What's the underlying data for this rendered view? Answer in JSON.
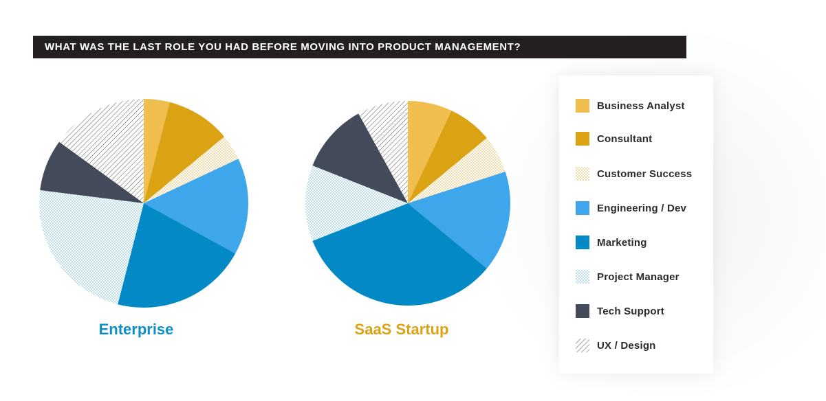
{
  "title": "WHAT WAS THE LAST ROLE YOU HAD BEFORE MOVING INTO PRODUCT MANAGEMENT?",
  "colors": {
    "business_analyst": "#f0bd4f",
    "consultant": "#dba214",
    "customer_success": "#e6b54a",
    "engineering_dev": "#3ea6ea",
    "marketing": "#038ac6",
    "project_manager": "#6fbcd6",
    "tech_support": "#434b5a",
    "ux_design": "#555555",
    "enterprise_label": "#0e8fc9",
    "startup_label": "#dba214"
  },
  "legend": [
    {
      "label": "Business Analyst",
      "key": "business_analyst",
      "icon": "solid-swatch"
    },
    {
      "label": "Consultant",
      "key": "consultant",
      "icon": "solid-swatch"
    },
    {
      "label": "Customer Success",
      "key": "customer_success",
      "icon": "dotted-swatch"
    },
    {
      "label": "Engineering / Dev",
      "key": "engineering_dev",
      "icon": "solid-swatch"
    },
    {
      "label": "Marketing",
      "key": "marketing",
      "icon": "solid-swatch"
    },
    {
      "label": "Project Manager",
      "key": "project_manager",
      "icon": "dotted-swatch"
    },
    {
      "label": "Tech Support",
      "key": "tech_support",
      "icon": "solid-swatch"
    },
    {
      "label": "UX / Design",
      "key": "ux_design",
      "icon": "hatched-swatch"
    }
  ],
  "chart_data": [
    {
      "type": "pie",
      "title": "Enterprise",
      "categories": [
        "Business Analyst",
        "Consultant",
        "Customer Success",
        "Engineering / Dev",
        "Marketing",
        "Project Manager",
        "Tech Support",
        "UX / Design"
      ],
      "values": [
        4,
        10,
        4,
        15,
        21,
        23,
        8,
        15
      ]
    },
    {
      "type": "pie",
      "title": "SaaS Startup",
      "categories": [
        "Business Analyst",
        "Consultant",
        "Customer Success",
        "Engineering / Dev",
        "Marketing",
        "Project Manager",
        "Tech Support",
        "UX / Design"
      ],
      "values": [
        7,
        7,
        6,
        16,
        33,
        12,
        11,
        8
      ]
    }
  ]
}
